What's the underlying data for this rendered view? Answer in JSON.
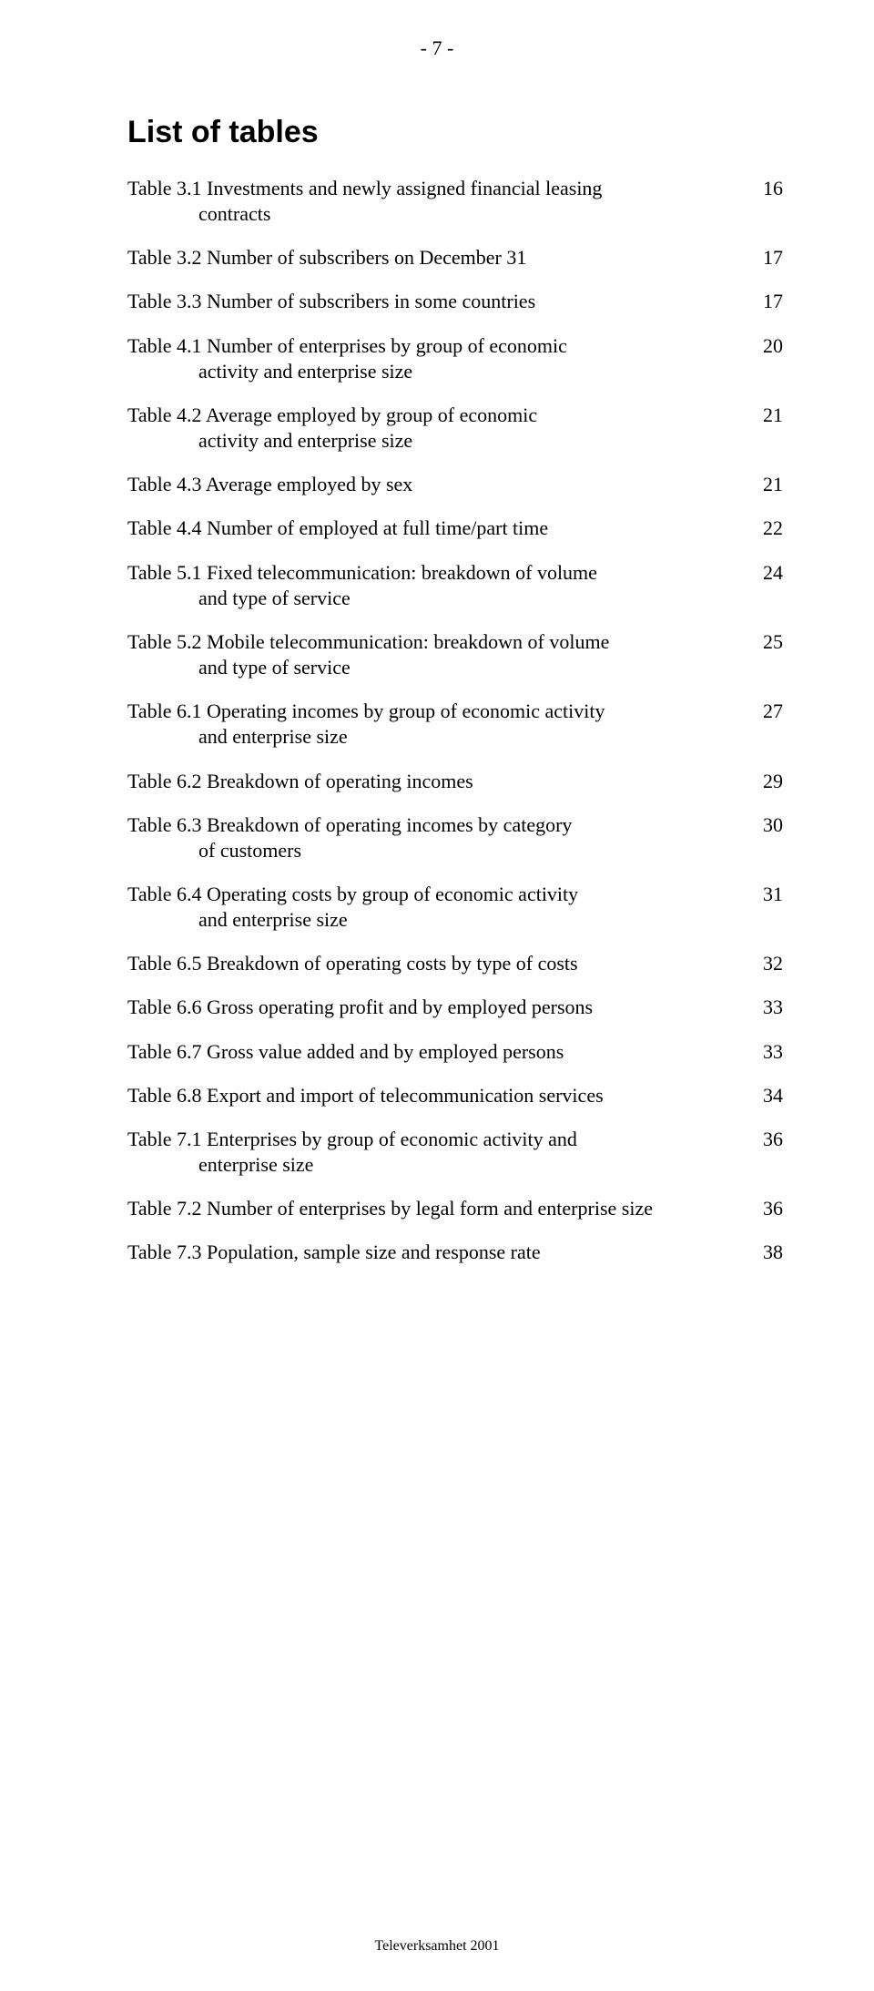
{
  "page_marker": "- 7 -",
  "heading": "List of tables",
  "entries": [
    {
      "line1": "Table 3.1 Investments and newly assigned financial leasing",
      "line2": "contracts",
      "page": "16"
    },
    {
      "line1": "Table 3.2 Number of subscribers on December 31",
      "line2": "",
      "page": "17"
    },
    {
      "line1": "Table 3.3 Number of subscribers in some countries",
      "line2": "",
      "page": "17"
    },
    {
      "line1": "Table 4.1 Number of enterprises by group of economic",
      "line2": "activity and enterprise size",
      "page": "20"
    },
    {
      "line1": "Table 4.2 Average employed by group of economic",
      "line2": "activity and enterprise size",
      "page": "21"
    },
    {
      "line1": "Table 4.3 Average employed by sex",
      "line2": "",
      "page": "21"
    },
    {
      "line1": "Table 4.4 Number of employed at full time/part time",
      "line2": "",
      "page": "22"
    },
    {
      "line1": "Table 5.1 Fixed telecommunication: breakdown of volume",
      "line2": "and type of service",
      "page": "24"
    },
    {
      "line1": "Table 5.2 Mobile telecommunication: breakdown of volume",
      "line2": "and type of service",
      "page": "25"
    },
    {
      "line1": "Table 6.1 Operating incomes by group of economic activity",
      "line2": "and enterprise size",
      "page": "27"
    },
    {
      "line1": "Table 6.2 Breakdown of operating incomes",
      "line2": "",
      "page": "29"
    },
    {
      "line1": "Table 6.3 Breakdown of operating incomes by category",
      "line2": "of customers",
      "page": "30"
    },
    {
      "line1": "Table 6.4 Operating costs by group of economic activity",
      "line2": "and enterprise size",
      "page": "31"
    },
    {
      "line1": "Table 6.5 Breakdown of operating costs by type of costs",
      "line2": "",
      "page": "32"
    },
    {
      "line1": "Table 6.6 Gross operating profit and by employed persons",
      "line2": "",
      "page": "33"
    },
    {
      "line1": "Table 6.7 Gross value added and by employed persons",
      "line2": "",
      "page": "33"
    },
    {
      "line1": "Table 6.8 Export and import of telecommunication services",
      "line2": "",
      "page": "34"
    },
    {
      "line1": "Table 7.1 Enterprises by group of economic activity and",
      "line2": "enterprise size",
      "page": "36"
    },
    {
      "line1": "Table 7.2 Number of enterprises by legal form and enterprise size",
      "line2": "",
      "page": "36"
    },
    {
      "line1": "Table 7.3 Population, sample size and response rate",
      "line2": "",
      "page": "38"
    }
  ],
  "footer": "Televerksamhet 2001"
}
